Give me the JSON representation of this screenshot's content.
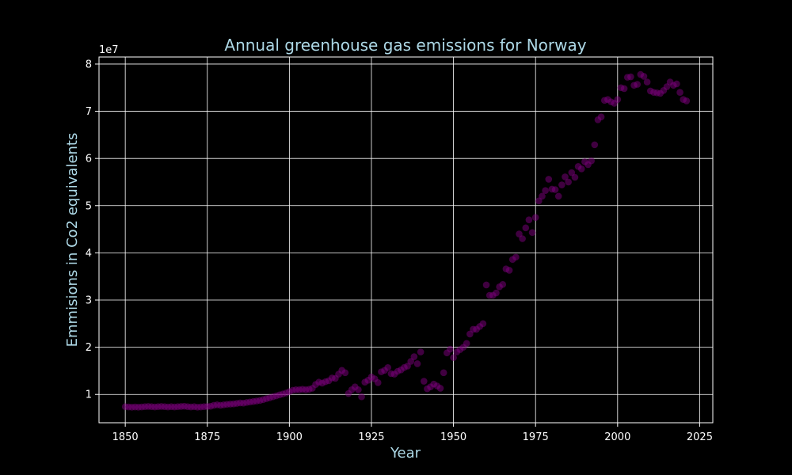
{
  "colors": {
    "background": "#000000",
    "title": "#add8e6",
    "axis_label": "#add8e6",
    "tick": "#ffffff",
    "grid": "#ffffff",
    "point": "#800080"
  },
  "chart_data": {
    "type": "scatter",
    "title": "Annual greenhouse gas emissions for Norway",
    "xlabel": "Year",
    "ylabel": "Emmisions in Co2 equivalents",
    "y_offset_label": "1e7",
    "xlim": [
      1842,
      2029
    ],
    "ylim": [
      4000000,
      81500000
    ],
    "xticks": [
      1850,
      1875,
      1900,
      1925,
      1950,
      1975,
      2000,
      2025
    ],
    "xtick_labels": [
      "1850",
      "1875",
      "1900",
      "1925",
      "1950",
      "1975",
      "2000",
      "2025"
    ],
    "yticks": [
      10000000,
      20000000,
      30000000,
      40000000,
      50000000,
      60000000,
      70000000,
      80000000
    ],
    "ytick_labels": [
      "1",
      "2",
      "3",
      "4",
      "5",
      "6",
      "7",
      "8"
    ],
    "grid": true,
    "point_alpha": 0.5,
    "series": [
      {
        "x": [
          1850,
          1851,
          1852,
          1853,
          1854,
          1855,
          1856,
          1857,
          1858,
          1859,
          1860,
          1861,
          1862,
          1863,
          1864,
          1865,
          1866,
          1867,
          1868,
          1869,
          1870,
          1871,
          1872,
          1873,
          1874,
          1875,
          1876,
          1877,
          1878,
          1879,
          1880,
          1881,
          1882,
          1883,
          1884,
          1885,
          1886,
          1887,
          1888,
          1889,
          1890,
          1891,
          1892,
          1893,
          1894,
          1895,
          1896,
          1897,
          1898,
          1899,
          1900,
          1901,
          1902,
          1903,
          1904,
          1905,
          1906,
          1907,
          1908,
          1909,
          1910,
          1911,
          1912,
          1913,
          1914,
          1915,
          1916,
          1917,
          1918,
          1919,
          1920,
          1921,
          1922,
          1923,
          1924,
          1925,
          1926,
          1927,
          1928,
          1929,
          1930,
          1931,
          1932,
          1933,
          1934,
          1935,
          1936,
          1937,
          1938,
          1939,
          1940,
          1941,
          1942,
          1943,
          1944,
          1945,
          1946,
          1947,
          1948,
          1949,
          1950,
          1951,
          1952,
          1953,
          1954,
          1955,
          1956,
          1957,
          1958,
          1959,
          1960,
          1961,
          1962,
          1963,
          1964,
          1965,
          1966,
          1967,
          1968,
          1969,
          1970,
          1971,
          1972,
          1973,
          1974,
          1975,
          1976,
          1977,
          1978,
          1979,
          1980,
          1981,
          1982,
          1983,
          1984,
          1985,
          1986,
          1987,
          1988,
          1989,
          1990,
          1991,
          1992,
          1993,
          1994,
          1995,
          1996,
          1997,
          1998,
          1999,
          2000,
          2001,
          2002,
          2003,
          2004,
          2005,
          2006,
          2007,
          2008,
          2009,
          2010,
          2011,
          2012,
          2013,
          2014,
          2015,
          2016,
          2017,
          2018,
          2019,
          2020,
          2021
        ],
        "y": [
          7400000,
          7350000,
          7300000,
          7350000,
          7300000,
          7350000,
          7400000,
          7450000,
          7400000,
          7350000,
          7400000,
          7450000,
          7400000,
          7350000,
          7400000,
          7350000,
          7400000,
          7450000,
          7500000,
          7400000,
          7350000,
          7400000,
          7300000,
          7350000,
          7400000,
          7450000,
          7500000,
          7700000,
          7800000,
          7700000,
          7800000,
          7900000,
          7950000,
          8000000,
          8100000,
          8200000,
          8150000,
          8300000,
          8400000,
          8500000,
          8600000,
          8700000,
          8900000,
          9100000,
          9300000,
          9500000,
          9700000,
          9900000,
          10100000,
          10300000,
          10600000,
          10900000,
          11000000,
          11000000,
          11100000,
          11000000,
          11100000,
          11300000,
          12100000,
          12600000,
          12400000,
          12700000,
          12900000,
          13500000,
          13400000,
          14300000,
          15100000,
          14600000,
          10200000,
          11000000,
          11600000,
          11000000,
          9500000,
          12600000,
          13000000,
          13700000,
          13300000,
          12500000,
          14800000,
          15100000,
          15700000,
          14400000,
          14300000,
          14900000,
          15200000,
          15700000,
          16000000,
          17000000,
          18000000,
          16500000,
          19000000,
          12800000,
          11200000,
          11600000,
          12200000,
          11800000,
          11300000,
          14600000,
          18800000,
          19600000,
          17800000,
          19000000,
          19500000,
          20000000,
          20800000,
          22800000,
          23800000,
          23800000,
          24400000,
          25000000,
          33200000,
          31000000,
          31000000,
          31500000,
          32800000,
          33300000,
          36600000,
          36300000,
          38600000,
          39100000,
          44000000,
          43000000,
          45300000,
          47000000,
          44300000,
          47500000,
          51000000,
          52000000,
          53200000,
          55600000,
          53500000,
          53400000,
          52000000,
          54400000,
          56100000,
          55000000,
          57000000,
          56000000,
          58300000,
          57800000,
          59300000,
          58700000,
          59500000,
          62900000,
          68200000,
          68800000,
          72300000,
          72500000,
          72000000,
          71700000,
          72500000,
          75000000,
          74800000,
          77200000,
          77300000,
          75500000,
          75700000,
          77800000,
          77400000,
          76200000,
          74300000,
          74000000,
          73900000,
          73800000,
          74400000,
          75200000,
          76200000,
          75500000,
          75800000,
          74000000,
          72500000,
          72200000
        ]
      }
    ]
  }
}
